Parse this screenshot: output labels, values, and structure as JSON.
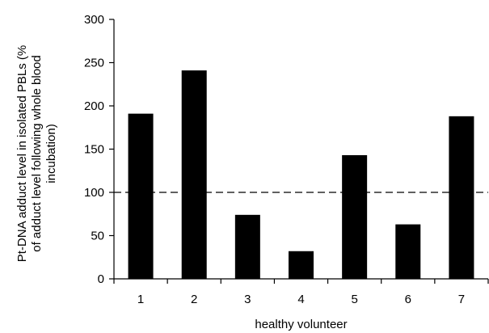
{
  "chart_data": {
    "type": "bar",
    "categories": [
      "1",
      "2",
      "3",
      "4",
      "5",
      "6",
      "7"
    ],
    "values": [
      191,
      241,
      74,
      32,
      143,
      63,
      188
    ],
    "title": "",
    "xlabel": "healthy volunteer",
    "ylabel_lines": [
      "Pt-DNA adduct level in isolated PBLs (%",
      "of adduct level following whole blood",
      "incubation)"
    ],
    "ylim": [
      0,
      300
    ],
    "yticks": [
      0,
      50,
      100,
      150,
      200,
      250,
      300
    ],
    "reference_line": {
      "value": 100,
      "style": "dashed"
    },
    "grid": false,
    "bar_color": "#000000"
  }
}
